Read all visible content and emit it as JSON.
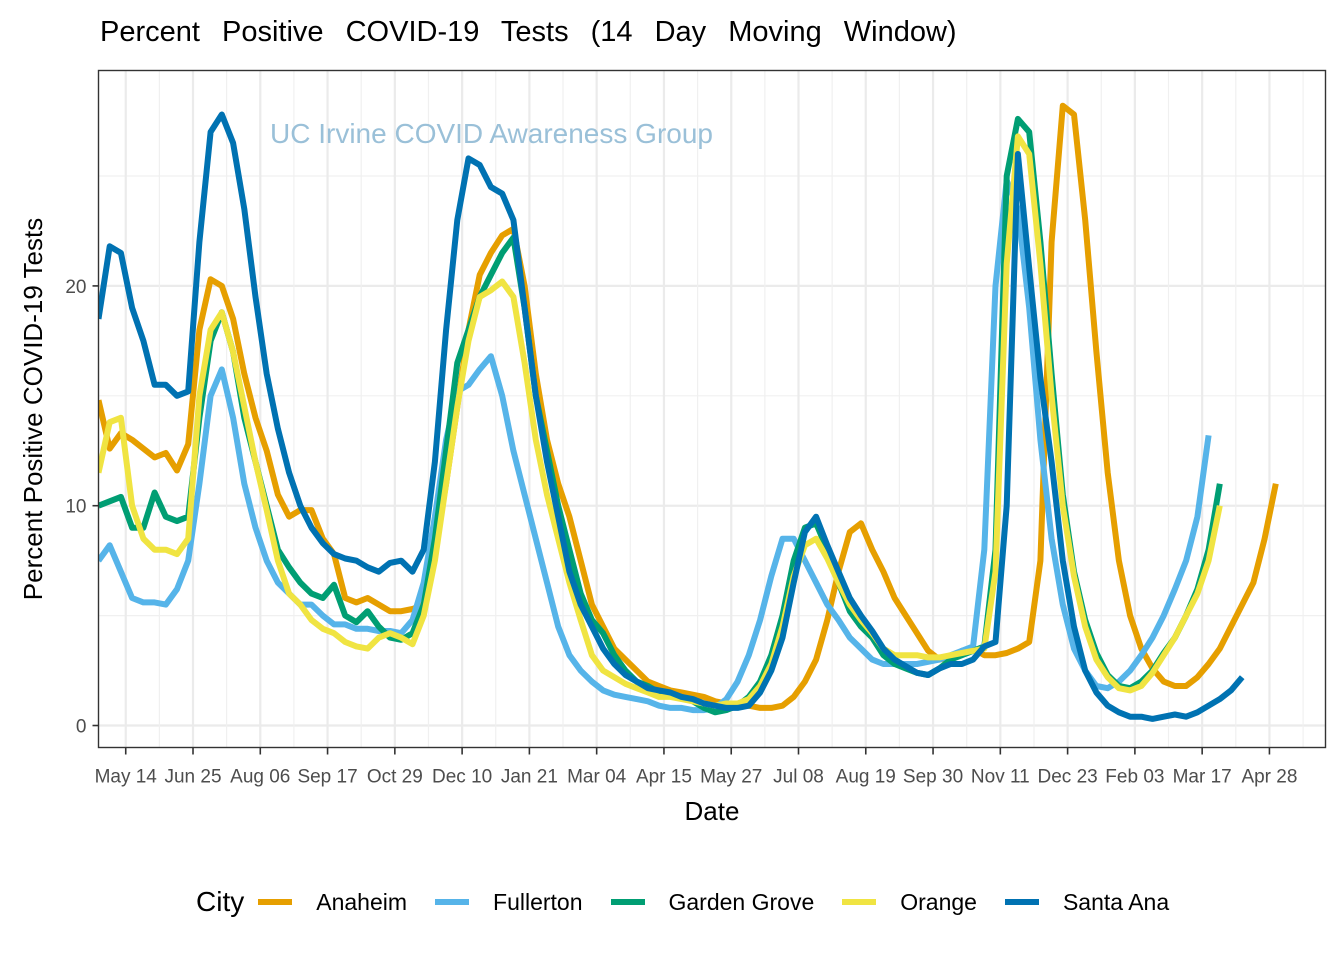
{
  "chart_data": {
    "type": "line",
    "title": "Percent   Positive   COVID-19    Tests  (14  Day  Moving  Window)",
    "xlabel": "Date",
    "ylabel": "Percent Positive COVID-19 Tests",
    "annotation": "UC Irvine COVID Awareness Group",
    "ylim": [
      -1,
      29.8
    ],
    "yticks": [
      0,
      10,
      20
    ],
    "x_start_label": "Apr 27 (year 1)",
    "x_unit": "days since start, weekly samples",
    "x_step_days": 7,
    "xlim_days": [
      0,
      766
    ],
    "xticks": [
      {
        "label": "May 14",
        "day": 17
      },
      {
        "label": "Jun 25",
        "day": 59
      },
      {
        "label": "Aug 06",
        "day": 101
      },
      {
        "label": "Sep 17",
        "day": 143
      },
      {
        "label": "Oct 29",
        "day": 185
      },
      {
        "label": "Dec 10",
        "day": 227
      },
      {
        "label": "Jan 21",
        "day": 269
      },
      {
        "label": "Mar 04",
        "day": 311
      },
      {
        "label": "Apr 15",
        "day": 353
      },
      {
        "label": "May 27",
        "day": 395
      },
      {
        "label": "Jul 08",
        "day": 437
      },
      {
        "label": "Aug 19",
        "day": 479
      },
      {
        "label": "Sep 30",
        "day": 521
      },
      {
        "label": "Nov 11",
        "day": 563
      },
      {
        "label": "Dec 23",
        "day": 605
      },
      {
        "label": "Feb 03",
        "day": 647
      },
      {
        "label": "Mar 17",
        "day": 689
      },
      {
        "label": "Apr 28",
        "day": 731
      }
    ],
    "grid": true,
    "legend_title": "City",
    "legend_position": "bottom",
    "series": [
      {
        "name": "Anaheim",
        "color": "#E69F00",
        "values": [
          14.8,
          12.6,
          13.3,
          13.0,
          12.6,
          12.2,
          12.4,
          11.6,
          12.8,
          18.0,
          20.3,
          20.0,
          18.5,
          16.0,
          14.0,
          12.5,
          10.5,
          9.5,
          9.8,
          9.8,
          8.5,
          7.8,
          5.8,
          5.6,
          5.8,
          5.5,
          5.2,
          5.2,
          5.3,
          5.5,
          8.0,
          11.0,
          14.5,
          18.0,
          20.5,
          21.5,
          22.3,
          22.6,
          20.0,
          16.0,
          13.0,
          11.0,
          9.5,
          7.5,
          5.5,
          4.5,
          3.5,
          3.0,
          2.5,
          2.0,
          1.8,
          1.6,
          1.5,
          1.4,
          1.3,
          1.1,
          1.0,
          0.9,
          0.9,
          0.8,
          0.8,
          0.9,
          1.3,
          2.0,
          3.0,
          4.8,
          7.0,
          8.8,
          9.2,
          8.0,
          7.0,
          5.8,
          5.0,
          4.2,
          3.4,
          3.0,
          3.1,
          3.4,
          3.5,
          3.2,
          3.2,
          3.3,
          3.5,
          3.8,
          7.5,
          22.0,
          28.2,
          27.8,
          23.0,
          17.0,
          11.5,
          7.5,
          5.0,
          3.5,
          2.6,
          2.0,
          1.8,
          1.8,
          2.2,
          2.8,
          3.5,
          4.5,
          5.5,
          6.5,
          8.5,
          11.0
        ]
      },
      {
        "name": "Fullerton",
        "color": "#56B4E9",
        "values": [
          7.5,
          8.2,
          7.0,
          5.8,
          5.6,
          5.6,
          5.5,
          6.2,
          7.5,
          11.0,
          15.0,
          16.2,
          14.0,
          11.0,
          9.0,
          7.5,
          6.5,
          6.0,
          5.5,
          5.5,
          5.0,
          4.6,
          4.6,
          4.4,
          4.4,
          4.3,
          4.3,
          4.2,
          4.8,
          6.5,
          9.5,
          13.0,
          15.2,
          15.5,
          16.2,
          16.8,
          15.0,
          12.5,
          10.5,
          8.5,
          6.5,
          4.5,
          3.2,
          2.5,
          2.0,
          1.6,
          1.4,
          1.3,
          1.2,
          1.1,
          0.9,
          0.8,
          0.8,
          0.7,
          0.7,
          0.8,
          1.2,
          2.0,
          3.2,
          4.8,
          6.8,
          8.5,
          8.5,
          7.5,
          6.5,
          5.5,
          4.8,
          4.0,
          3.5,
          3.0,
          2.8,
          2.8,
          2.8,
          2.8,
          2.9,
          3.0,
          3.2,
          3.4,
          3.6,
          8.0,
          20.0,
          24.8,
          23.5,
          19.0,
          13.0,
          8.5,
          5.5,
          3.5,
          2.5,
          1.8,
          1.7,
          2.0,
          2.5,
          3.2,
          4.0,
          5.0,
          6.2,
          7.5,
          9.5,
          13.2
        ]
      },
      {
        "name": "Garden Grove",
        "color": "#009E73",
        "values": [
          10.0,
          10.2,
          10.4,
          9.0,
          9.0,
          10.6,
          9.5,
          9.3,
          9.5,
          14.0,
          17.5,
          18.8,
          17.0,
          14.0,
          12.0,
          10.0,
          8.0,
          7.2,
          6.5,
          6.0,
          5.8,
          6.4,
          5.0,
          4.7,
          5.2,
          4.5,
          4.0,
          3.9,
          4.2,
          5.5,
          8.5,
          12.5,
          16.5,
          18.0,
          19.5,
          20.5,
          21.5,
          22.2,
          19.0,
          15.0,
          12.5,
          10.0,
          8.0,
          6.0,
          4.8,
          4.2,
          3.2,
          2.5,
          2.0,
          1.8,
          1.5,
          1.4,
          1.3,
          1.1,
          0.8,
          0.6,
          0.7,
          0.9,
          1.3,
          2.0,
          3.2,
          5.0,
          7.5,
          9.0,
          9.2,
          8.0,
          6.5,
          5.2,
          4.5,
          4.0,
          3.2,
          2.8,
          2.6,
          2.4,
          2.3,
          2.6,
          3.0,
          3.2,
          3.4,
          3.6,
          8.0,
          25.0,
          27.6,
          27.0,
          22.0,
          16.0,
          10.5,
          7.0,
          4.8,
          3.3,
          2.3,
          1.8,
          1.7,
          2.0,
          2.5,
          3.3,
          4.0,
          5.0,
          6.2,
          8.0,
          11.0
        ]
      },
      {
        "name": "Orange",
        "color": "#F0E442",
        "values": [
          11.5,
          13.8,
          14.0,
          10.0,
          8.5,
          8.0,
          8.0,
          7.8,
          8.5,
          15.0,
          18.0,
          18.8,
          17.0,
          14.5,
          12.0,
          9.8,
          7.5,
          6.0,
          5.5,
          4.8,
          4.4,
          4.2,
          3.8,
          3.6,
          3.5,
          4.0,
          4.2,
          4.0,
          3.7,
          5.0,
          7.5,
          11.0,
          14.5,
          17.5,
          19.5,
          19.8,
          20.2,
          19.5,
          16.5,
          13.0,
          10.5,
          8.5,
          6.5,
          4.8,
          3.2,
          2.5,
          2.2,
          1.9,
          1.7,
          1.5,
          1.3,
          1.3,
          1.2,
          1.1,
          1.0,
          0.9,
          1.0,
          1.0,
          1.2,
          1.8,
          2.8,
          4.5,
          6.8,
          8.2,
          8.5,
          7.6,
          6.5,
          5.5,
          4.8,
          4.2,
          3.5,
          3.2,
          3.2,
          3.2,
          3.1,
          3.1,
          3.2,
          3.3,
          3.4,
          3.5,
          7.0,
          21.0,
          26.8,
          26.0,
          21.0,
          15.0,
          10.0,
          6.8,
          4.5,
          3.0,
          2.2,
          1.7,
          1.6,
          1.8,
          2.4,
          3.2,
          4.0,
          5.0,
          6.0,
          7.5,
          10.0
        ]
      },
      {
        "name": "Santa Ana",
        "color": "#0072B2",
        "values": [
          18.5,
          21.8,
          21.5,
          19.0,
          17.5,
          15.5,
          15.5,
          15.0,
          15.2,
          22.0,
          27.0,
          27.8,
          26.5,
          23.5,
          19.5,
          16.0,
          13.5,
          11.5,
          10.0,
          9.0,
          8.3,
          7.8,
          7.6,
          7.5,
          7.2,
          7.0,
          7.4,
          7.5,
          7.0,
          8.0,
          12.0,
          18.0,
          23.0,
          25.8,
          25.5,
          24.5,
          24.2,
          23.0,
          19.0,
          15.0,
          12.0,
          9.5,
          7.0,
          5.5,
          4.5,
          3.5,
          2.8,
          2.3,
          2.0,
          1.7,
          1.6,
          1.5,
          1.3,
          1.2,
          1.0,
          0.9,
          0.8,
          0.8,
          0.9,
          1.5,
          2.5,
          4.0,
          6.5,
          8.8,
          9.5,
          8.2,
          7.0,
          5.8,
          5.0,
          4.3,
          3.5,
          3.0,
          2.7,
          2.4,
          2.3,
          2.6,
          2.8,
          2.8,
          3.0,
          3.6,
          3.8,
          10.0,
          26.0,
          20.8,
          15.8,
          12.0,
          7.5,
          4.5,
          2.5,
          1.5,
          0.9,
          0.6,
          0.4,
          0.4,
          0.3,
          0.4,
          0.5,
          0.4,
          0.6,
          0.9,
          1.2,
          1.6,
          2.2
        ]
      }
    ]
  }
}
